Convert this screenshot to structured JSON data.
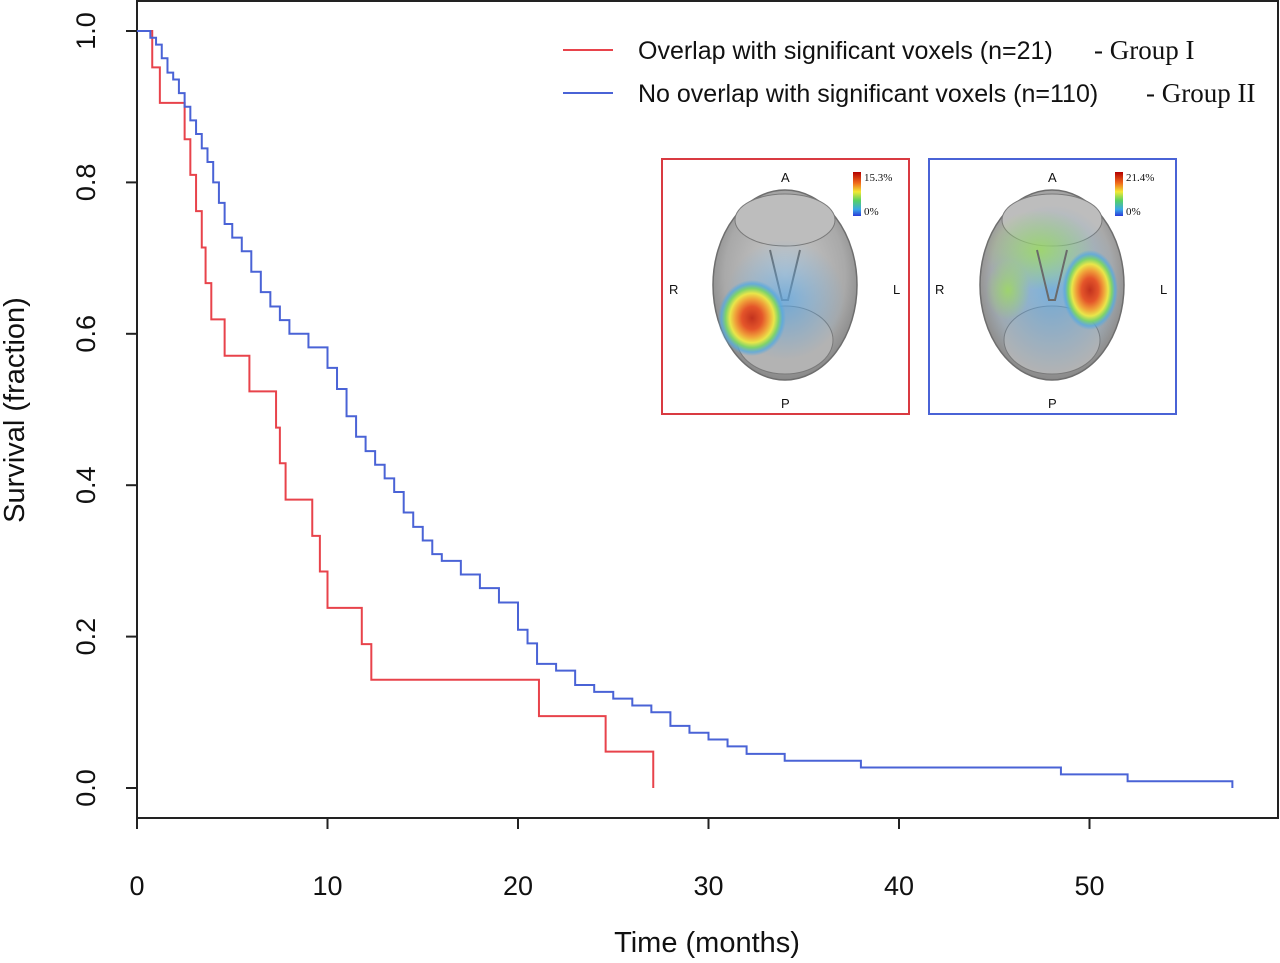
{
  "chart_data": {
    "type": "line",
    "subtype": "kaplan-meier step",
    "xlabel": "Time (months)",
    "ylabel": "Survival (fraction)",
    "xlim": [
      0,
      58
    ],
    "ylim": [
      0,
      1.0
    ],
    "xticks": [
      0,
      10,
      20,
      30,
      40,
      50
    ],
    "yticks": [
      0.0,
      0.2,
      0.4,
      0.6,
      0.8,
      1.0
    ],
    "xtick_labels": [
      "0",
      "10",
      "20",
      "30",
      "40",
      "50"
    ],
    "ytick_labels": [
      "0.0",
      "0.2",
      "0.4",
      "0.6",
      "0.8",
      "1.0"
    ],
    "grid": false,
    "legend_position": "top-right",
    "series": [
      {
        "name": "Overlap with significant voxels (n=21)",
        "group": "- Group I",
        "color": "#e8434b",
        "x": [
          0,
          0.8,
          1.2,
          2.5,
          2.8,
          3.1,
          3.4,
          3.6,
          3.9,
          4.2,
          4.6,
          5.9,
          7.3,
          7.5,
          7.8,
          9.2,
          9.6,
          10.0,
          11.8,
          12.3,
          21.1,
          24.6,
          27.1
        ],
        "y": [
          1.0,
          0.952,
          0.905,
          0.857,
          0.81,
          0.762,
          0.714,
          0.667,
          0.619,
          0.619,
          0.571,
          0.524,
          0.476,
          0.429,
          0.381,
          0.333,
          0.286,
          0.238,
          0.19,
          0.143,
          0.095,
          0.048,
          0.0
        ]
      },
      {
        "name": "No overlap with significant voxels (n=110)",
        "group": "- Group II",
        "color": "#4a63d6",
        "x": [
          0,
          0.7,
          1.0,
          1.3,
          1.6,
          1.9,
          2.2,
          2.5,
          2.8,
          3.1,
          3.4,
          3.7,
          4.0,
          4.3,
          4.6,
          5.0,
          5.5,
          6.0,
          6.5,
          7.0,
          7.5,
          8.0,
          9.0,
          10.0,
          10.5,
          11.0,
          11.5,
          12.0,
          12.5,
          13.0,
          13.5,
          14.0,
          14.5,
          15.0,
          15.5,
          16.0,
          17.0,
          18.0,
          19.0,
          20.0,
          20.5,
          21.0,
          22.0,
          23.0,
          24.0,
          25.0,
          26.0,
          27.0,
          28.0,
          29.0,
          30.0,
          31.0,
          32.0,
          33.0,
          34.0,
          36.0,
          38.0,
          44.0,
          48.5,
          52.0,
          57.5
        ],
        "y": [
          1.0,
          0.991,
          0.982,
          0.964,
          0.945,
          0.936,
          0.918,
          0.9,
          0.882,
          0.864,
          0.845,
          0.827,
          0.8,
          0.773,
          0.745,
          0.727,
          0.709,
          0.682,
          0.655,
          0.636,
          0.618,
          0.6,
          0.582,
          0.555,
          0.527,
          0.491,
          0.464,
          0.445,
          0.427,
          0.409,
          0.391,
          0.364,
          0.345,
          0.327,
          0.309,
          0.3,
          0.282,
          0.264,
          0.245,
          0.209,
          0.191,
          0.164,
          0.155,
          0.136,
          0.127,
          0.118,
          0.109,
          0.1,
          0.082,
          0.073,
          0.064,
          0.055,
          0.045,
          0.045,
          0.036,
          0.036,
          0.027,
          0.027,
          0.018,
          0.009,
          0.0
        ]
      }
    ],
    "insets": [
      {
        "border_color": "#d93a41",
        "labels": {
          "anterior": "A",
          "posterior": "P",
          "right": "R",
          "left": "L"
        },
        "scale_max": "15.3%",
        "scale_min": "0%",
        "hotspot_side": "right hemisphere, posterior"
      },
      {
        "border_color": "#4a63d6",
        "labels": {
          "anterior": "A",
          "posterior": "P",
          "right": "R",
          "left": "L"
        },
        "scale_max": "21.4%",
        "scale_min": "0%",
        "hotspot_side": "left hemisphere, temporal"
      }
    ]
  }
}
